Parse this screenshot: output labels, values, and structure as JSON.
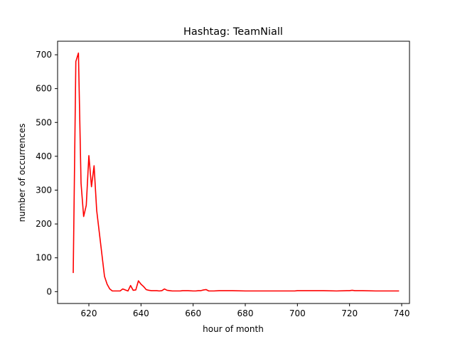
{
  "chart_data": {
    "type": "line",
    "title": "Hashtag: TeamNiall",
    "xlabel": "hour of month",
    "ylabel": "number of occurrences",
    "xlim": [
      608,
      743
    ],
    "ylim": [
      -35,
      740
    ],
    "xticks": [
      620,
      640,
      660,
      680,
      700,
      720,
      740
    ],
    "yticks": [
      0,
      100,
      200,
      300,
      400,
      500,
      600,
      700
    ],
    "grid": false,
    "legend": "none",
    "series": [
      {
        "color": "#ff0000",
        "x": [
          614,
          615,
          616,
          617,
          618,
          619,
          620,
          621,
          622,
          623,
          624,
          625,
          626,
          627,
          628,
          629,
          630,
          631,
          632,
          633,
          634,
          635,
          636,
          637,
          638,
          639,
          640,
          641,
          642,
          643,
          644,
          645,
          646,
          647,
          648,
          649,
          650,
          651,
          652,
          653,
          654,
          655,
          656,
          658,
          660,
          661,
          662,
          663,
          664,
          665,
          666,
          668,
          670,
          675,
          680,
          685,
          690,
          695,
          699,
          700,
          705,
          710,
          715,
          719,
          720,
          721,
          722,
          725,
          730,
          735,
          739
        ],
        "y": [
          55,
          680,
          705,
          320,
          222,
          255,
          402,
          310,
          372,
          240,
          175,
          110,
          45,
          22,
          8,
          2,
          2,
          2,
          2,
          8,
          5,
          2,
          18,
          4,
          5,
          32,
          22,
          15,
          6,
          4,
          3,
          3,
          3,
          2,
          3,
          8,
          4,
          3,
          2,
          2,
          2,
          2,
          3,
          3,
          2,
          2,
          3,
          3,
          5,
          6,
          2,
          2,
          3,
          3,
          2,
          2,
          2,
          2,
          2,
          3,
          3,
          3,
          2,
          3,
          3,
          4,
          3,
          3,
          2,
          2,
          2
        ]
      }
    ]
  }
}
